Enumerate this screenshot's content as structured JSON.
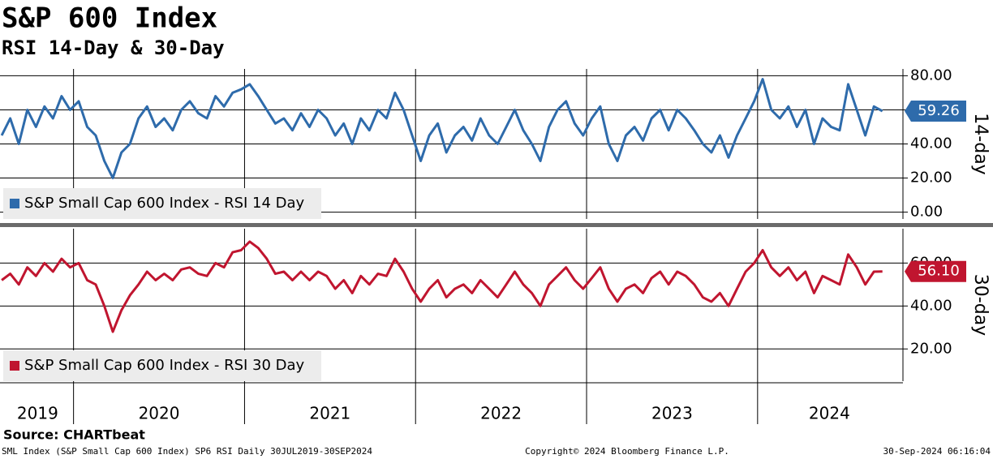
{
  "title": "S&P 600 Index",
  "subtitle": "RSI 14-Day & 30-Day",
  "source": "Source: CHARTbeat",
  "footer": {
    "left": "SML Index (S&P Small Cap 600 Index) SP6 RSI  Daily 30JUL2019-30SEP2024",
    "center": "Copyright© 2024 Bloomberg Finance L.P.",
    "right": "30-Sep-2024 06:16:04"
  },
  "chart_data": [
    {
      "type": "line",
      "ylabel": "14-day",
      "xlim": [
        2019.57,
        2024.85
      ],
      "ylim": [
        -4,
        84
      ],
      "xgrid": [
        2020,
        2021,
        2022,
        2023,
        2024
      ],
      "grid": true,
      "yticks": [
        {
          "value": 80,
          "label": "80.00"
        },
        {
          "value": 60,
          "label": "60.00"
        },
        {
          "value": 40,
          "label": "40.00"
        },
        {
          "value": 20,
          "label": "20.00"
        },
        {
          "value": 0,
          "label": "0.00"
        }
      ],
      "x": [
        2019.58,
        2019.63,
        2019.68,
        2019.73,
        2019.78,
        2019.83,
        2019.88,
        2019.93,
        2019.98,
        2020.03,
        2020.08,
        2020.13,
        2020.18,
        2020.23,
        2020.28,
        2020.33,
        2020.38,
        2020.43,
        2020.48,
        2020.53,
        2020.58,
        2020.63,
        2020.68,
        2020.73,
        2020.78,
        2020.83,
        2020.88,
        2020.93,
        2020.98,
        2021.03,
        2021.08,
        2021.13,
        2021.18,
        2021.23,
        2021.28,
        2021.33,
        2021.38,
        2021.43,
        2021.48,
        2021.53,
        2021.58,
        2021.63,
        2021.68,
        2021.73,
        2021.78,
        2021.83,
        2021.88,
        2021.93,
        2021.98,
        2022.03,
        2022.08,
        2022.13,
        2022.18,
        2022.23,
        2022.28,
        2022.33,
        2022.38,
        2022.43,
        2022.48,
        2022.53,
        2022.58,
        2022.63,
        2022.68,
        2022.73,
        2022.78,
        2022.83,
        2022.88,
        2022.93,
        2022.98,
        2023.03,
        2023.08,
        2023.13,
        2023.18,
        2023.23,
        2023.28,
        2023.33,
        2023.38,
        2023.43,
        2023.48,
        2023.53,
        2023.58,
        2023.63,
        2023.68,
        2023.73,
        2023.78,
        2023.83,
        2023.88,
        2023.93,
        2023.98,
        2024.03,
        2024.08,
        2024.13,
        2024.18,
        2024.23,
        2024.28,
        2024.33,
        2024.38,
        2024.43,
        2024.48,
        2024.53,
        2024.58,
        2024.63,
        2024.68,
        2024.73
      ],
      "series": [
        {
          "name": "S&P Small Cap 600 Index - RSI 14 Day",
          "color": "#2e6bab",
          "last_value_label": "59.26",
          "values": [
            45,
            55,
            40,
            60,
            50,
            62,
            55,
            68,
            60,
            65,
            50,
            45,
            30,
            20,
            35,
            40,
            55,
            62,
            50,
            55,
            48,
            60,
            65,
            58,
            55,
            68,
            62,
            70,
            72,
            75,
            68,
            60,
            52,
            55,
            48,
            58,
            50,
            60,
            55,
            45,
            52,
            40,
            55,
            48,
            60,
            55,
            70,
            60,
            45,
            30,
            45,
            52,
            35,
            45,
            50,
            42,
            55,
            45,
            40,
            50,
            60,
            48,
            40,
            30,
            50,
            60,
            65,
            52,
            45,
            55,
            62,
            40,
            30,
            45,
            50,
            42,
            55,
            60,
            48,
            60,
            55,
            48,
            40,
            35,
            45,
            32,
            45,
            55,
            65,
            78,
            60,
            55,
            62,
            50,
            60,
            40,
            55,
            50,
            48,
            75,
            60,
            45,
            62,
            59.26
          ]
        }
      ]
    },
    {
      "type": "line",
      "ylabel": "30-day",
      "xlim": [
        2019.57,
        2024.85
      ],
      "ylim": [
        5,
        76
      ],
      "xgrid": [
        2020,
        2021,
        2022,
        2023,
        2024
      ],
      "grid": true,
      "yticks": [
        {
          "value": 60,
          "label": "60.00"
        },
        {
          "value": 40,
          "label": "40.00"
        },
        {
          "value": 20,
          "label": "20.00"
        }
      ],
      "xticks": [
        {
          "value": 2019.79,
          "label": "2019"
        },
        {
          "value": 2020.5,
          "label": "2020"
        },
        {
          "value": 2021.5,
          "label": "2021"
        },
        {
          "value": 2022.5,
          "label": "2022"
        },
        {
          "value": 2023.5,
          "label": "2023"
        },
        {
          "value": 2024.42,
          "label": "2024"
        }
      ],
      "x": [
        2019.58,
        2019.63,
        2019.68,
        2019.73,
        2019.78,
        2019.83,
        2019.88,
        2019.93,
        2019.98,
        2020.03,
        2020.08,
        2020.13,
        2020.18,
        2020.23,
        2020.28,
        2020.33,
        2020.38,
        2020.43,
        2020.48,
        2020.53,
        2020.58,
        2020.63,
        2020.68,
        2020.73,
        2020.78,
        2020.83,
        2020.88,
        2020.93,
        2020.98,
        2021.03,
        2021.08,
        2021.13,
        2021.18,
        2021.23,
        2021.28,
        2021.33,
        2021.38,
        2021.43,
        2021.48,
        2021.53,
        2021.58,
        2021.63,
        2021.68,
        2021.73,
        2021.78,
        2021.83,
        2021.88,
        2021.93,
        2021.98,
        2022.03,
        2022.08,
        2022.13,
        2022.18,
        2022.23,
        2022.28,
        2022.33,
        2022.38,
        2022.43,
        2022.48,
        2022.53,
        2022.58,
        2022.63,
        2022.68,
        2022.73,
        2022.78,
        2022.83,
        2022.88,
        2022.93,
        2022.98,
        2023.03,
        2023.08,
        2023.13,
        2023.18,
        2023.23,
        2023.28,
        2023.33,
        2023.38,
        2023.43,
        2023.48,
        2023.53,
        2023.58,
        2023.63,
        2023.68,
        2023.73,
        2023.78,
        2023.83,
        2023.88,
        2023.93,
        2023.98,
        2024.03,
        2024.08,
        2024.13,
        2024.18,
        2024.23,
        2024.28,
        2024.33,
        2024.38,
        2024.43,
        2024.48,
        2024.53,
        2024.58,
        2024.63,
        2024.68,
        2024.73
      ],
      "series": [
        {
          "name": "S&P Small Cap 600 Index - RSI 30 Day",
          "color": "#c0152f",
          "last_value_label": "56.10",
          "values": [
            52,
            55,
            50,
            58,
            54,
            60,
            56,
            62,
            58,
            60,
            52,
            50,
            40,
            28,
            38,
            45,
            50,
            56,
            52,
            55,
            52,
            57,
            58,
            55,
            54,
            60,
            58,
            65,
            66,
            70,
            67,
            62,
            55,
            56,
            52,
            56,
            52,
            56,
            54,
            48,
            52,
            46,
            54,
            50,
            55,
            54,
            62,
            56,
            48,
            42,
            48,
            52,
            44,
            48,
            50,
            46,
            52,
            48,
            44,
            50,
            56,
            50,
            46,
            40,
            50,
            54,
            58,
            52,
            48,
            53,
            58,
            48,
            42,
            48,
            50,
            46,
            53,
            56,
            50,
            56,
            54,
            50,
            44,
            42,
            46,
            40,
            48,
            56,
            60,
            66,
            58,
            54,
            58,
            52,
            56,
            46,
            54,
            52,
            50,
            64,
            58,
            50,
            56,
            56.1
          ]
        }
      ]
    }
  ]
}
